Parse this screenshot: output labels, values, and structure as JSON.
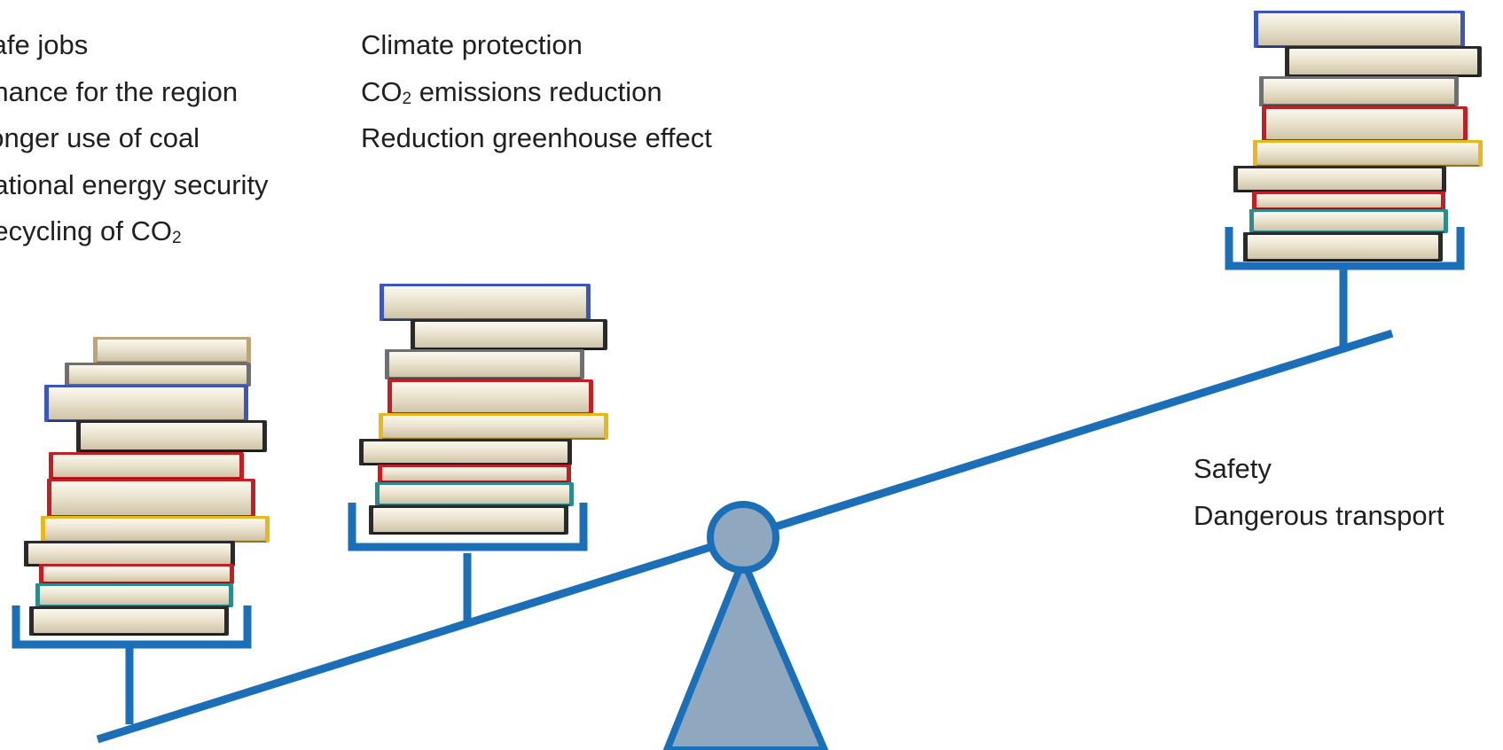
{
  "colors": {
    "beam": "#1a6fb8",
    "fulcrum_fill": "#8fa8c0",
    "text": "#1f1f1f"
  },
  "left_arguments": [
    {
      "text": "Safe jobs"
    },
    {
      "text": "Chance for the region"
    },
    {
      "text": "Longer use of coal"
    },
    {
      "text": "National energy security"
    },
    {
      "text": "Recycling of CO",
      "sub": "2"
    }
  ],
  "middle_arguments": [
    {
      "text": "Climate protection"
    },
    {
      "text": "CO",
      "sub": "2",
      "after": " emissions reduction"
    },
    {
      "text": "Reduction greenhouse effect"
    }
  ],
  "right_arguments": [
    {
      "text": "Safety"
    },
    {
      "text": "Dangerous transport"
    }
  ],
  "icons": {
    "left_pan": "book-stack-icon",
    "middle_pan": "book-stack-icon",
    "right_pan": "book-stack-icon",
    "pivot": "fulcrum-icon"
  }
}
